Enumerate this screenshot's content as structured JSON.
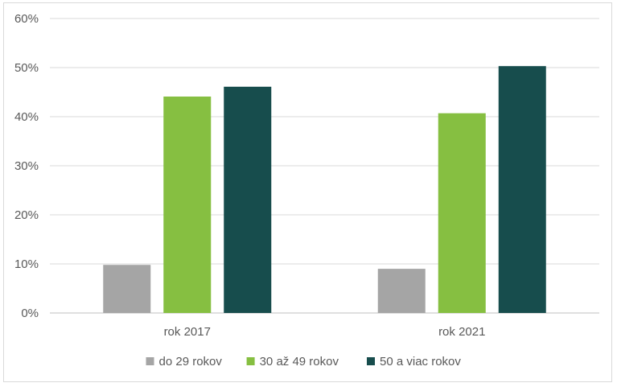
{
  "chart_data": {
    "type": "bar",
    "categories": [
      "rok 2017",
      "rok 2021"
    ],
    "series": [
      {
        "name": "do 29 rokov",
        "color": "#a5a5a5",
        "values": [
          9.8,
          9.0
        ]
      },
      {
        "name": "30 až 49 rokov",
        "color": "#86bf41",
        "values": [
          44.1,
          40.7
        ]
      },
      {
        "name": "50 a viac rokov",
        "color": "#174d4d",
        "values": [
          46.1,
          50.3
        ]
      }
    ],
    "ylim": [
      0,
      60
    ],
    "yticks": [
      "0%",
      "10%",
      "20%",
      "30%",
      "40%",
      "50%",
      "60%"
    ],
    "grid": true,
    "legend_position": "bottom"
  }
}
